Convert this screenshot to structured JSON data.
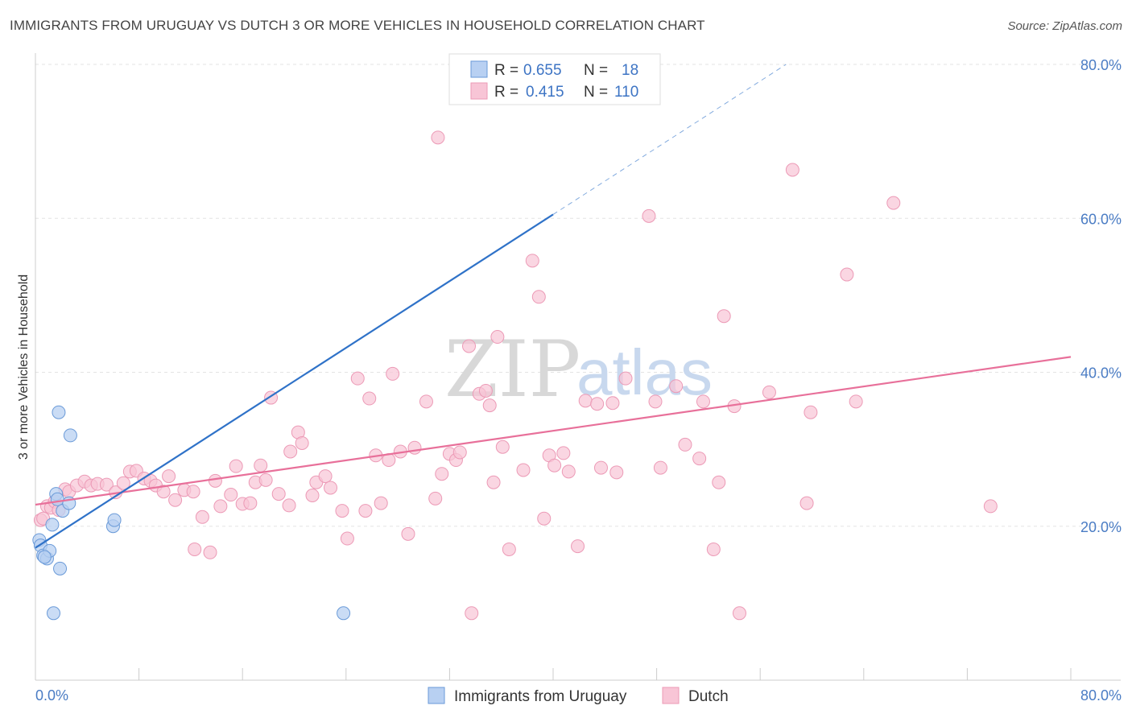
{
  "title": "IMMIGRANTS FROM URUGUAY VS DUTCH 3 OR MORE VEHICLES IN HOUSEHOLD CORRELATION CHART",
  "source": "Source: ZipAtlas.com",
  "watermark": {
    "zip": "ZIP",
    "atlas": "atlas"
  },
  "colors": {
    "blue_fill": "#b8d0f2",
    "blue_stroke": "#6a9ad8",
    "blue_line": "#2f72c8",
    "pink_fill": "#f8c5d6",
    "pink_stroke": "#ec9ab6",
    "pink_line": "#e8709a",
    "grid": "#e3e3e3",
    "axis_label": "#4a7cc4"
  },
  "legend": {
    "series": [
      {
        "r_label": "R =",
        "r_value": "0.655",
        "n_label": "N =",
        "n_value": "18"
      },
      {
        "r_label": "R =",
        "r_value": "0.415",
        "n_label": "N =",
        "n_value": "110"
      }
    ]
  },
  "chart_data": {
    "type": "scatter",
    "title": "IMMIGRANTS FROM URUGUAY VS DUTCH 3 OR MORE VEHICLES IN HOUSEHOLD CORRELATION CHART",
    "xlabel": "",
    "ylabel": "3 or more Vehicles in Household",
    "xlim": [
      0,
      80
    ],
    "ylim": [
      0,
      80
    ],
    "x_tick_labels": [
      "0.0%",
      "80.0%"
    ],
    "y_ticks": [
      20,
      40,
      60,
      80
    ],
    "y_tick_labels": [
      "20.0%",
      "40.0%",
      "60.0%",
      "80.0%"
    ],
    "series": [
      {
        "name": "Immigrants from Uruguay",
        "r": 0.655,
        "n": 18,
        "trend": {
          "x0": 0,
          "y0": 17.2,
          "x1": 40,
          "y1": 60.5,
          "dash_x1": 58,
          "dash_y1": 80
        },
        "points": [
          [
            0.3,
            18.2
          ],
          [
            0.4,
            17.5
          ],
          [
            0.6,
            16.2
          ],
          [
            0.9,
            15.8
          ],
          [
            1.1,
            16.8
          ],
          [
            1.3,
            20.2
          ],
          [
            1.6,
            24.2
          ],
          [
            1.7,
            23.5
          ],
          [
            2.1,
            22.0
          ],
          [
            1.8,
            34.8
          ],
          [
            2.7,
            31.8
          ],
          [
            2.6,
            23.0
          ],
          [
            1.9,
            14.5
          ],
          [
            1.4,
            8.7
          ],
          [
            6.0,
            20.0
          ],
          [
            6.1,
            20.8
          ],
          [
            23.8,
            8.7
          ],
          [
            0.7,
            16.0
          ]
        ]
      },
      {
        "name": "Dutch",
        "r": 0.415,
        "n": 110,
        "trend": {
          "x0": 0,
          "y0": 22.8,
          "x1": 80,
          "y1": 42.0
        },
        "points": [
          [
            0.4,
            20.8
          ],
          [
            0.6,
            21.0
          ],
          [
            0.9,
            22.6
          ],
          [
            1.2,
            22.4
          ],
          [
            1.5,
            23.2
          ],
          [
            1.8,
            22.1
          ],
          [
            2.3,
            24.8
          ],
          [
            2.6,
            24.5
          ],
          [
            3.2,
            25.3
          ],
          [
            3.8,
            25.8
          ],
          [
            4.3,
            25.3
          ],
          [
            4.8,
            25.5
          ],
          [
            5.5,
            25.4
          ],
          [
            6.2,
            24.4
          ],
          [
            6.8,
            25.6
          ],
          [
            7.3,
            27.1
          ],
          [
            7.8,
            27.2
          ],
          [
            8.4,
            26.2
          ],
          [
            8.9,
            25.9
          ],
          [
            9.3,
            25.3
          ],
          [
            9.9,
            24.5
          ],
          [
            10.3,
            26.5
          ],
          [
            10.8,
            23.4
          ],
          [
            11.5,
            24.7
          ],
          [
            12.2,
            24.5
          ],
          [
            12.3,
            17.0
          ],
          [
            12.9,
            21.2
          ],
          [
            13.5,
            16.6
          ],
          [
            13.9,
            25.9
          ],
          [
            14.3,
            22.6
          ],
          [
            15.1,
            24.1
          ],
          [
            15.5,
            27.8
          ],
          [
            16.0,
            22.9
          ],
          [
            16.6,
            23.0
          ],
          [
            17.0,
            25.7
          ],
          [
            17.4,
            27.9
          ],
          [
            17.8,
            26.0
          ],
          [
            18.2,
            36.7
          ],
          [
            18.8,
            24.2
          ],
          [
            19.6,
            22.7
          ],
          [
            19.7,
            29.7
          ],
          [
            20.3,
            32.2
          ],
          [
            20.6,
            30.8
          ],
          [
            21.4,
            24.0
          ],
          [
            21.7,
            25.7
          ],
          [
            22.4,
            26.5
          ],
          [
            22.8,
            25.0
          ],
          [
            23.7,
            22.0
          ],
          [
            24.1,
            18.4
          ],
          [
            24.9,
            39.2
          ],
          [
            25.5,
            22.0
          ],
          [
            25.8,
            36.6
          ],
          [
            26.3,
            29.2
          ],
          [
            26.7,
            23.0
          ],
          [
            27.3,
            28.6
          ],
          [
            27.6,
            39.8
          ],
          [
            28.2,
            29.7
          ],
          [
            28.8,
            19.0
          ],
          [
            29.3,
            30.2
          ],
          [
            30.2,
            36.2
          ],
          [
            30.9,
            23.6
          ],
          [
            31.4,
            26.8
          ],
          [
            31.1,
            70.5
          ],
          [
            32.0,
            29.4
          ],
          [
            32.5,
            28.6
          ],
          [
            32.8,
            29.6
          ],
          [
            33.7,
            8.7
          ],
          [
            33.5,
            43.4
          ],
          [
            34.3,
            37.2
          ],
          [
            34.8,
            37.6
          ],
          [
            35.1,
            35.7
          ],
          [
            35.4,
            25.7
          ],
          [
            35.7,
            44.6
          ],
          [
            36.1,
            30.3
          ],
          [
            36.6,
            17.0
          ],
          [
            37.7,
            27.3
          ],
          [
            38.4,
            54.5
          ],
          [
            38.9,
            49.8
          ],
          [
            39.3,
            21.0
          ],
          [
            39.7,
            29.2
          ],
          [
            40.1,
            27.9
          ],
          [
            40.8,
            29.5
          ],
          [
            41.2,
            27.1
          ],
          [
            41.9,
            17.4
          ],
          [
            42.5,
            36.3
          ],
          [
            43.4,
            35.9
          ],
          [
            43.7,
            27.6
          ],
          [
            44.6,
            36.0
          ],
          [
            44.9,
            27.0
          ],
          [
            45.6,
            39.2
          ],
          [
            47.4,
            60.3
          ],
          [
            47.9,
            36.2
          ],
          [
            48.3,
            27.6
          ],
          [
            49.5,
            38.2
          ],
          [
            50.2,
            30.6
          ],
          [
            51.3,
            28.8
          ],
          [
            51.6,
            36.2
          ],
          [
            52.4,
            17.0
          ],
          [
            52.8,
            25.7
          ],
          [
            53.2,
            47.3
          ],
          [
            54.0,
            35.6
          ],
          [
            54.4,
            8.7
          ],
          [
            56.7,
            37.4
          ],
          [
            58.5,
            66.3
          ],
          [
            59.6,
            23.0
          ],
          [
            59.9,
            34.8
          ],
          [
            62.7,
            52.7
          ],
          [
            63.4,
            36.2
          ],
          [
            66.3,
            62.0
          ],
          [
            73.8,
            22.6
          ]
        ]
      }
    ]
  },
  "bottom_legend": [
    "Immigrants from Uruguay",
    "Dutch"
  ]
}
